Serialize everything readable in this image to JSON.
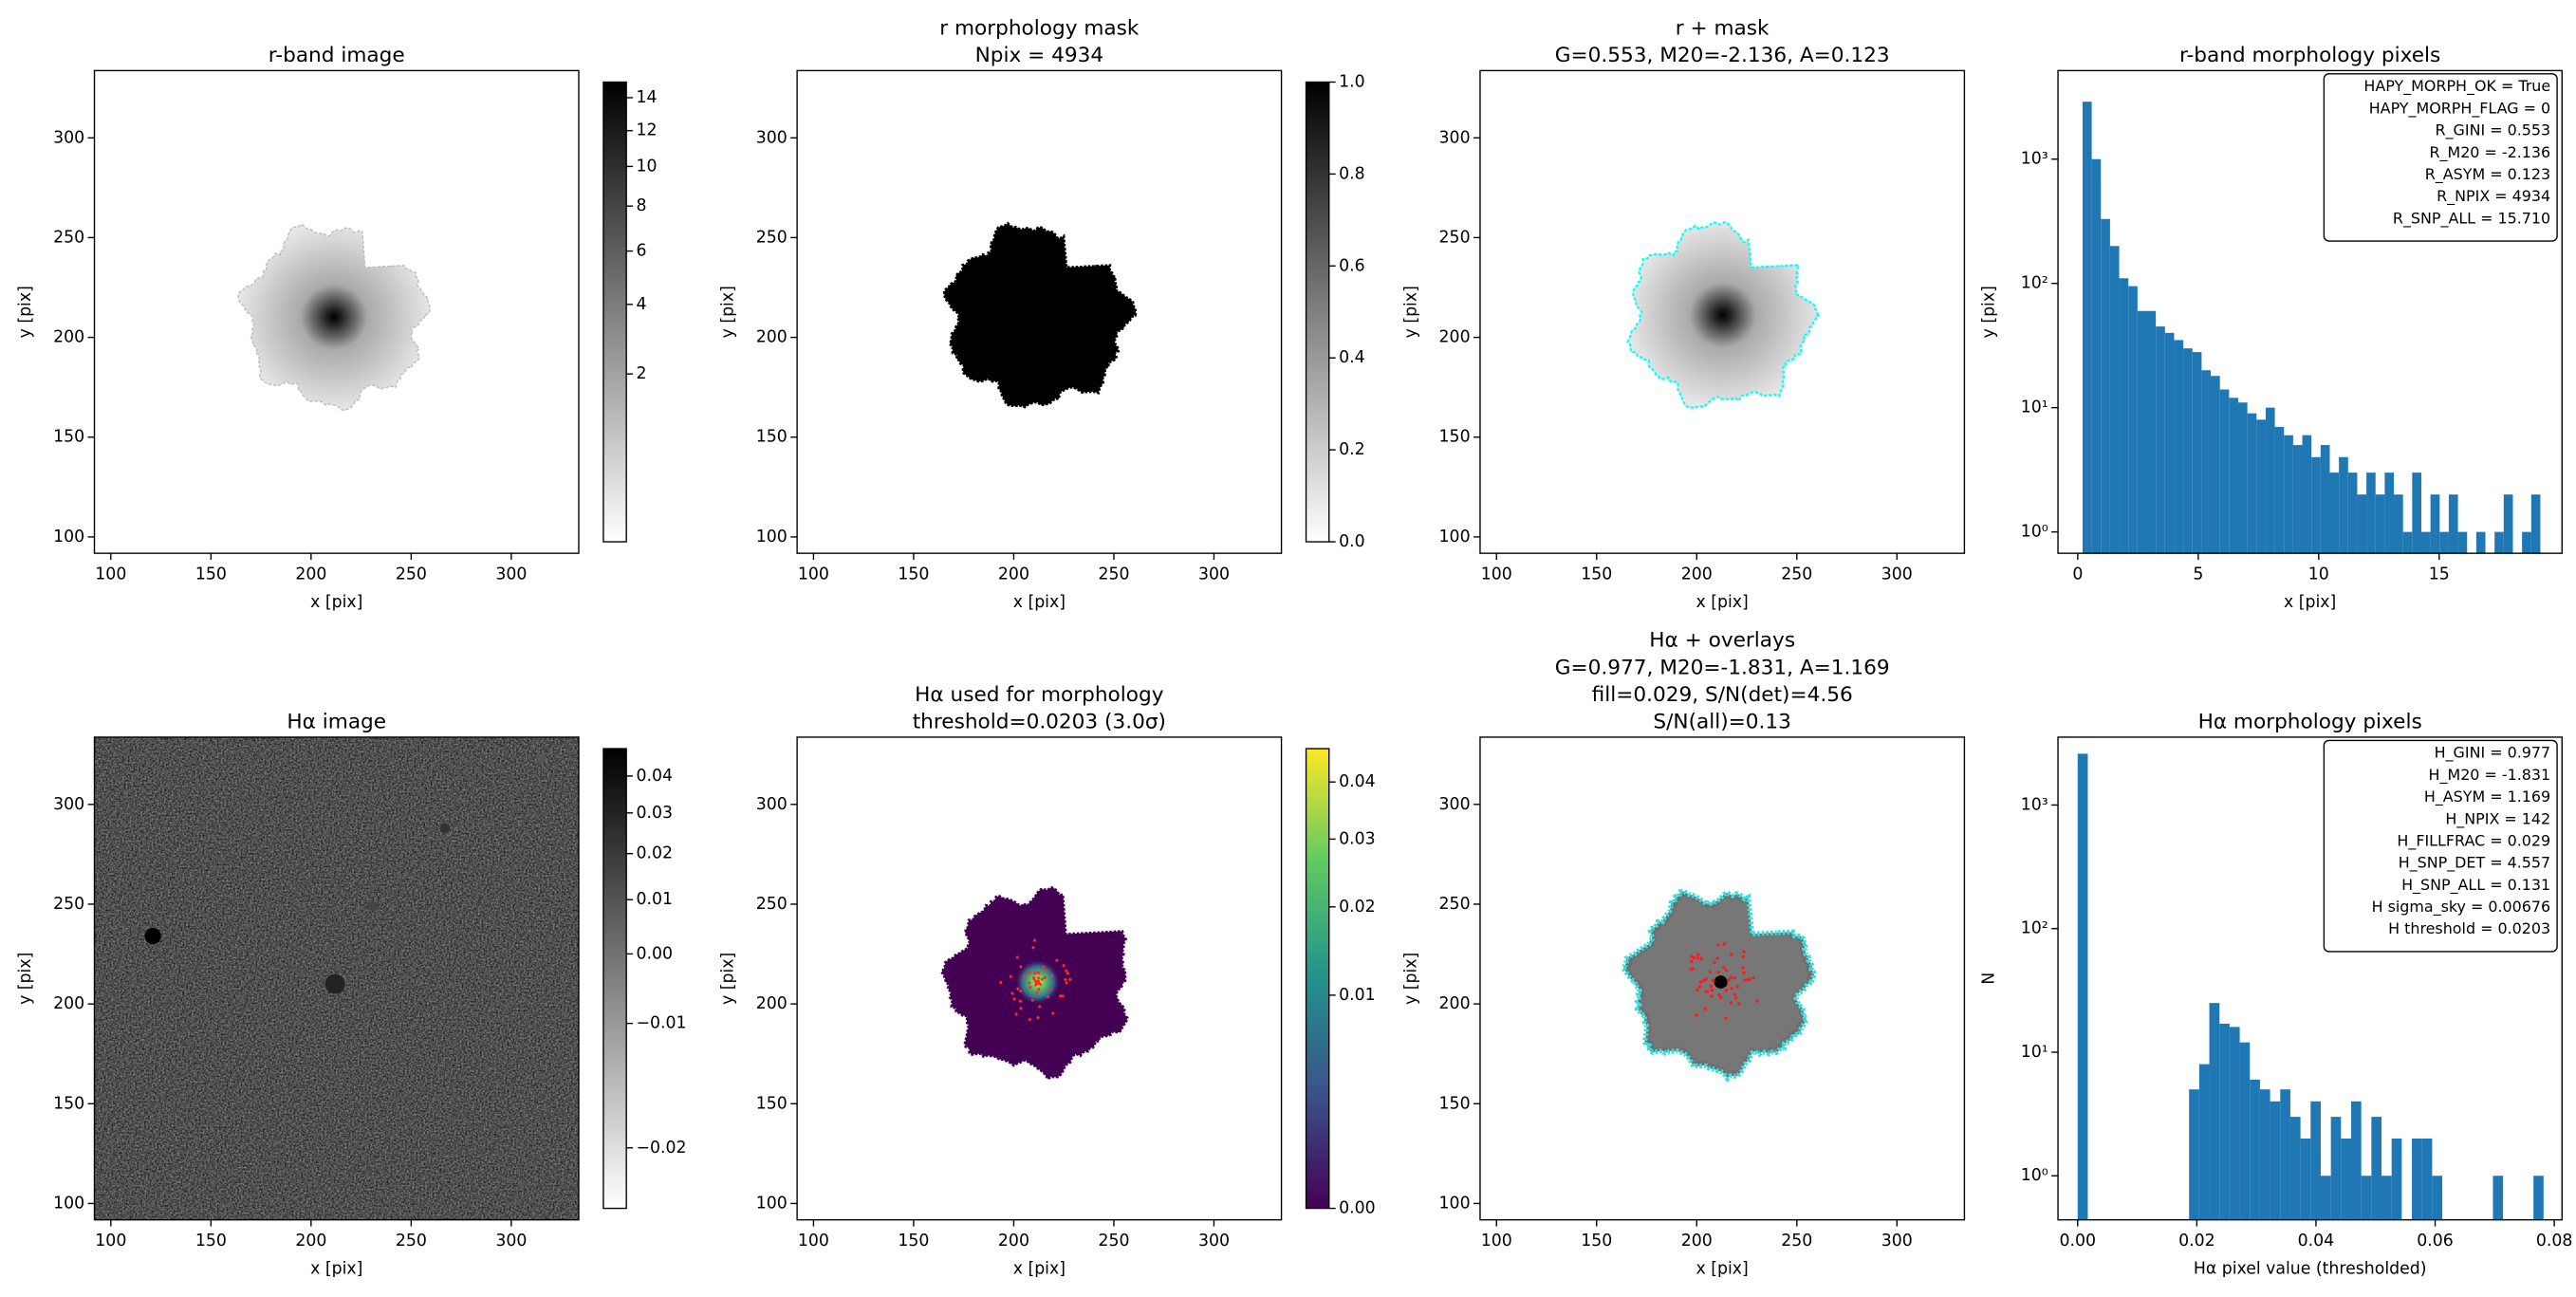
{
  "chart_data": [
    {
      "type": "image",
      "title": [
        "r-band image"
      ],
      "xlabel": "x [pix]",
      "ylabel": "y [pix]",
      "xlim": [
        91.8,
        333.7
      ],
      "ylim": [
        91.8,
        333.7
      ],
      "xticks": [
        100,
        150,
        200,
        250,
        300
      ],
      "yticks": [
        100,
        150,
        200,
        250,
        300
      ],
      "colorbar": {
        "cmap": "gray_r",
        "scale": "sqrt",
        "clim": [
          0,
          15
        ],
        "ticks": [
          2,
          4,
          6,
          8,
          10,
          12,
          14
        ]
      }
    },
    {
      "type": "image",
      "title": [
        "r morphology mask",
        "Npix = 4934"
      ],
      "xlabel": "x [pix]",
      "ylabel": "y [pix]",
      "xlim": [
        91.8,
        333.7
      ],
      "ylim": [
        91.8,
        333.7
      ],
      "xticks": [
        100,
        150,
        200,
        250,
        300
      ],
      "yticks": [
        100,
        150,
        200,
        250,
        300
      ],
      "colorbar": {
        "cmap": "gray_r",
        "scale": "linear",
        "clim": [
          0,
          1
        ],
        "ticks": [
          {
            "value": 0,
            "label": "0.0"
          },
          0.2,
          0.4,
          0.6,
          0.8,
          {
            "value": 1,
            "label": "1.0"
          }
        ]
      }
    },
    {
      "type": "image",
      "title": [
        "r + mask",
        "G=0.553, M20=-2.136, A=0.123"
      ],
      "xlabel": "x [pix]",
      "ylabel": "y [pix]",
      "xlim": [
        91.8,
        333.7
      ],
      "ylim": [
        91.8,
        333.7
      ],
      "xticks": [
        100,
        150,
        200,
        250,
        300
      ],
      "yticks": [
        100,
        150,
        200,
        250,
        300
      ]
    },
    {
      "type": "histogram",
      "title": [
        "r-band morphology pixels"
      ],
      "xlabel": "x [pix]",
      "ylabel": "y [pix]",
      "xlim": [
        -0.82,
        20.1
      ],
      "ylim": [
        0.673,
        5160
      ],
      "yscale": "log",
      "color": "#1f77b4",
      "xticks": [
        0,
        5,
        10,
        15
      ],
      "yticks": [
        {
          "value": 1,
          "label": "10⁰"
        },
        {
          "value": 10,
          "label": "10¹"
        },
        {
          "value": 100,
          "label": "10²"
        },
        {
          "value": 1000,
          "label": "10³"
        }
      ],
      "bins": [
        0.2,
        0.58,
        0.96,
        1.34,
        1.72,
        2.1,
        2.48,
        2.86,
        3.24,
        3.62,
        4.0,
        4.38,
        4.76,
        5.14,
        5.52,
        5.9,
        6.28,
        6.66,
        7.04,
        7.42,
        7.8,
        8.18,
        8.56,
        8.94,
        9.32,
        9.7,
        10.08,
        10.46,
        10.84,
        11.22,
        11.6,
        11.98,
        12.36,
        12.74,
        13.12,
        13.5,
        13.88,
        14.26,
        14.64,
        15.02,
        15.4,
        15.78,
        16.16,
        16.54,
        16.92,
        17.3,
        17.68,
        18.06,
        18.44,
        18.82,
        19.2
      ],
      "values": [
        2900,
        1000,
        330,
        200,
        110,
        95,
        60,
        60,
        45,
        40,
        35,
        30,
        28,
        20,
        18,
        14,
        12,
        11,
        9,
        8,
        10,
        7,
        6,
        5,
        6,
        4,
        5,
        3,
        4,
        3,
        2,
        3,
        2,
        3,
        2,
        1,
        3,
        1,
        2,
        1,
        2,
        1,
        0,
        1,
        0,
        1,
        2,
        0,
        1,
        2
      ],
      "annotation": [
        "HAPY_MORPH_OK = True",
        "HAPY_MORPH_FLAG = 0",
        "R_GINI = 0.553",
        "R_M20 = -2.136",
        "R_ASYM = 0.123",
        "R_NPIX = 4934",
        "R_SNP_ALL = 15.710"
      ]
    },
    {
      "type": "image",
      "title": [
        "Hα image"
      ],
      "xlabel": "x [pix]",
      "ylabel": "y [pix]",
      "xlim": [
        91.8,
        333.7
      ],
      "ylim": [
        91.8,
        333.7
      ],
      "xticks": [
        100,
        150,
        200,
        250,
        300
      ],
      "yticks": [
        100,
        150,
        200,
        250,
        300
      ],
      "colorbar": {
        "cmap": "gray_r",
        "scale": "sqrt",
        "clim": [
          -0.0212,
          0.048
        ],
        "ticks": [
          0.04,
          0.03,
          0.02,
          0.01,
          {
            "value": 0,
            "label": "0.00"
          },
          {
            "value": -0.01,
            "label": "−0.01"
          },
          {
            "value": -0.02,
            "label": "−0.02"
          }
        ]
      }
    },
    {
      "type": "image",
      "title": [
        "Hα used for morphology",
        "threshold=0.0203 (3.0σ)"
      ],
      "xlabel": "x [pix]",
      "ylabel": "y [pix]",
      "xlim": [
        91.8,
        333.7
      ],
      "ylim": [
        91.8,
        333.7
      ],
      "xticks": [
        100,
        150,
        200,
        250,
        300
      ],
      "yticks": [
        100,
        150,
        200,
        250,
        300
      ],
      "colorbar": {
        "cmap": "viridis",
        "scale": "sqrt",
        "clim": [
          0,
          0.0465
        ],
        "ticks": [
          0.04,
          0.03,
          0.02,
          0.01,
          {
            "value": 0,
            "label": "0.00"
          }
        ]
      }
    },
    {
      "type": "image",
      "title": [
        "Hα + overlays",
        "G=0.977, M20=-1.831, A=1.169",
        "fill=0.029, S/N(det)=4.56",
        "S/N(all)=0.13"
      ],
      "xlabel": "x [pix]",
      "ylabel": "y [pix]",
      "xlim": [
        91.8,
        333.7
      ],
      "ylim": [
        91.8,
        333.7
      ],
      "xticks": [
        100,
        150,
        200,
        250,
        300
      ],
      "yticks": [
        100,
        150,
        200,
        250,
        300
      ]
    },
    {
      "type": "histogram",
      "title": [
        "Hα morphology pixels"
      ],
      "xlabel": "Hα pixel value (thresholded)",
      "ylabel": "N",
      "xlim": [
        -0.0033,
        0.0813
      ],
      "ylim": [
        0.44,
        3540
      ],
      "yscale": "log",
      "color": "#1f77b4",
      "xticks": [
        {
          "value": 0,
          "label": "0.00"
        },
        0.02,
        0.04,
        0.06,
        0.08
      ],
      "yticks": [
        {
          "value": 1,
          "label": "10⁰"
        },
        {
          "value": 10,
          "label": "10¹"
        },
        {
          "value": 100,
          "label": "10²"
        },
        {
          "value": 1000,
          "label": "10³"
        }
      ],
      "bins": [
        0,
        0.0017,
        0.0034,
        0.0051,
        0.0068,
        0.0085,
        0.0102,
        0.0119,
        0.0136,
        0.0153,
        0.017,
        0.0187,
        0.0204,
        0.0221,
        0.0238,
        0.0255,
        0.0272,
        0.0289,
        0.0306,
        0.0323,
        0.034,
        0.0357,
        0.0374,
        0.0391,
        0.0408,
        0.0425,
        0.0442,
        0.0459,
        0.0476,
        0.0493,
        0.051,
        0.0527,
        0.0544,
        0.0561,
        0.0578,
        0.0595,
        0.0612,
        0.0629,
        0.0646,
        0.0663,
        0.068,
        0.0697,
        0.0714,
        0.0731,
        0.0748,
        0.0765,
        0.0782
      ],
      "values": [
        2600,
        0,
        0,
        0,
        0,
        0,
        0,
        0,
        0,
        0,
        0,
        5,
        8,
        25,
        17,
        16,
        12,
        6,
        5,
        4,
        5,
        3,
        2,
        4,
        1,
        3,
        2,
        4,
        1,
        3,
        1,
        2,
        0,
        2,
        2,
        1,
        0,
        0,
        0,
        0,
        0,
        1,
        0,
        0,
        0,
        1
      ],
      "annotation": [
        "H_GINI = 0.977",
        "H_M20 = -1.831",
        "H_ASYM = 1.169",
        "H_NPIX = 142",
        "H_FILLFRAC = 0.029",
        "H_SNP_DET = 4.557",
        "H_SNP_ALL = 0.131",
        "H sigma_sky = 0.00676",
        "H threshold = 0.0203"
      ]
    }
  ]
}
